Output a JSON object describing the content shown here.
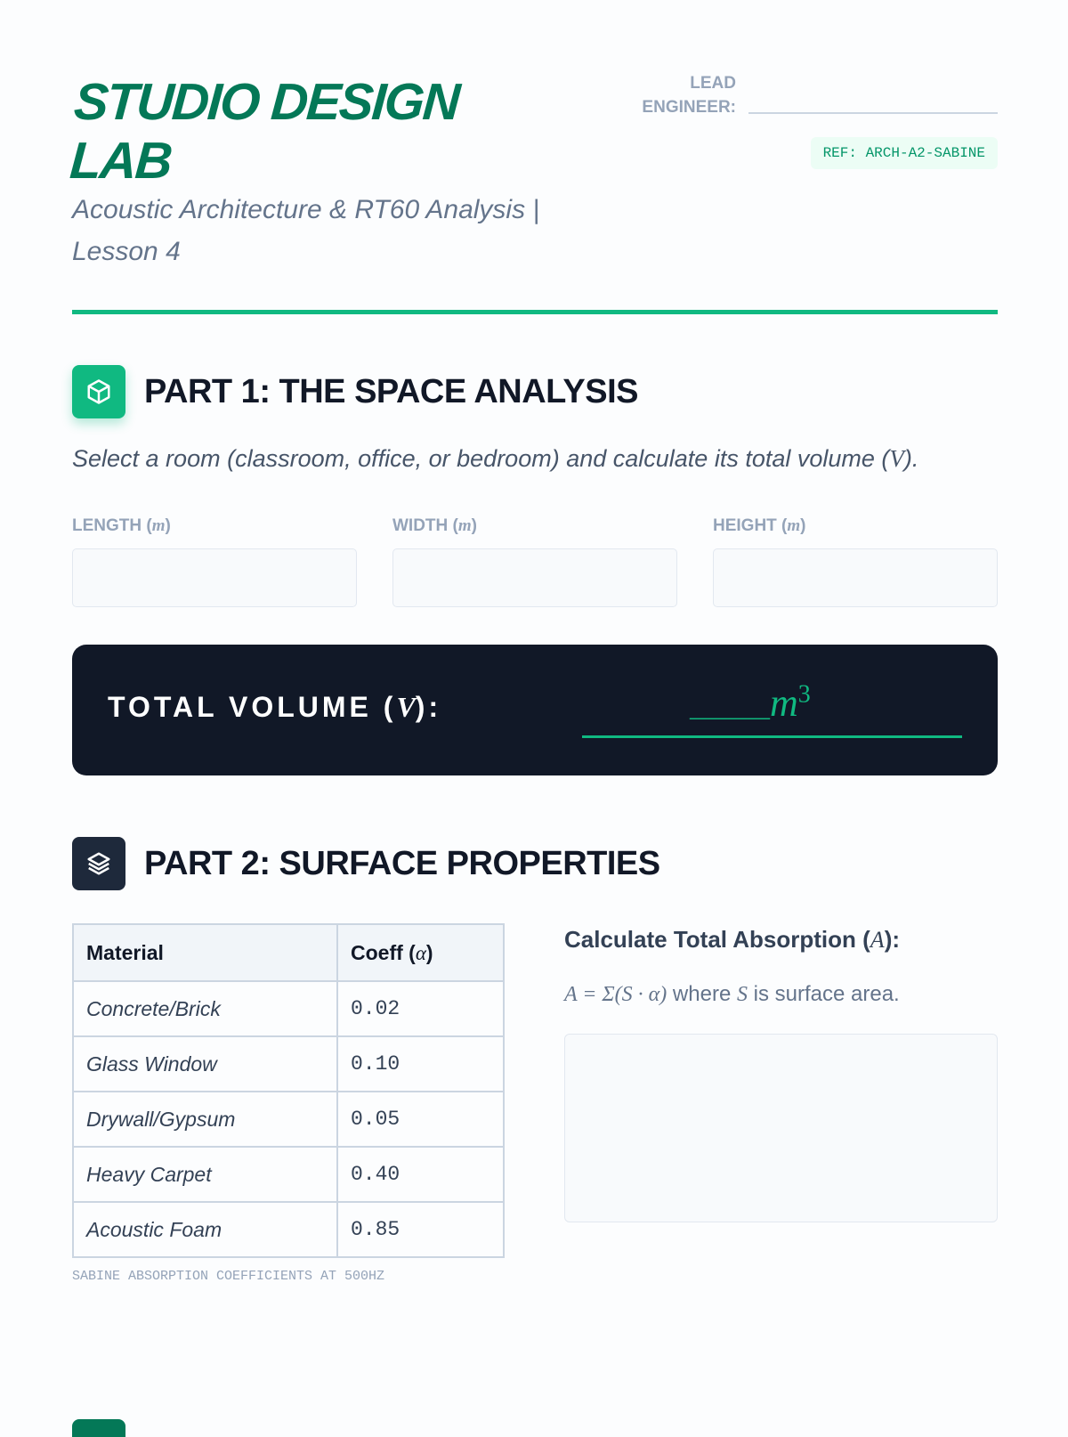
{
  "header": {
    "brand": "STUDIO DESIGN LAB",
    "subtitle": "Acoustic Architecture & RT60 Analysis | Lesson 4",
    "lead_label": "LEAD ENGINEER:",
    "ref": "REF: ARCH-A2-SABINE"
  },
  "part1": {
    "title": "PART 1: THE SPACE ANALYSIS",
    "icon": "cube-icon",
    "instruction_pre": "Select a room (classroom, office, or bedroom) and calculate its total volume (",
    "instruction_var": "V",
    "instruction_post": ").",
    "fields": [
      {
        "label": "LENGTH",
        "unit": "m",
        "value": ""
      },
      {
        "label": "WIDTH",
        "unit": "m",
        "value": ""
      },
      {
        "label": "HEIGHT",
        "unit": "m",
        "value": ""
      }
    ],
    "volume": {
      "label": "TOTAL VOLUME (",
      "var": "V",
      "label_end": "):",
      "blank": "______",
      "unit": "m",
      "exp": "3"
    }
  },
  "part2": {
    "title": "PART 2: SURFACE PROPERTIES",
    "icon": "layers-icon",
    "table": {
      "headers": [
        "Material",
        "Coeff ("
      ],
      "alpha": "α",
      "close": ")",
      "rows": [
        [
          "Concrete/Brick",
          "0.02"
        ],
        [
          "Glass Window",
          "0.10"
        ],
        [
          "Drywall/Gypsum",
          "0.05"
        ],
        [
          "Heavy Carpet",
          "0.40"
        ],
        [
          "Acoustic Foam",
          "0.85"
        ]
      ]
    },
    "caption": "SABINE ABSORPTION COEFFICIENTS AT 500HZ",
    "absorption": {
      "title_pre": "Calculate Total Absorption (",
      "var": "A",
      "title_post": "):",
      "formula": "A = Σ(S · α)",
      "formula_text": " where ",
      "s_var": "S",
      "formula_end": " is surface area.",
      "answer": ""
    }
  },
  "colors": {
    "accent": "#10b981",
    "brand": "#047857",
    "dark": "#111827"
  }
}
